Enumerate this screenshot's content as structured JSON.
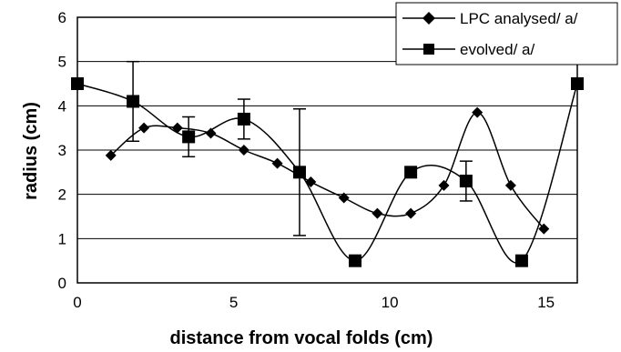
{
  "chart_data": {
    "type": "scatter",
    "xlabel": "distance from vocal folds (cm)",
    "ylabel": "radius (cm)",
    "xlim": [
      0,
      16
    ],
    "ylim": [
      0,
      6
    ],
    "x_ticks": [
      0,
      5,
      10,
      15
    ],
    "y_ticks": [
      0,
      1,
      2,
      3,
      4,
      5,
      6
    ],
    "grid": "horizontal",
    "legend_position": "top-right",
    "series": [
      {
        "name": "LPC analysed/ a/",
        "marker": "diamond",
        "color": "#000000",
        "smoothed": true,
        "x": [
          1.07,
          2.13,
          3.2,
          4.27,
          5.33,
          6.4,
          7.47,
          8.53,
          9.6,
          10.67,
          11.73,
          12.8,
          13.87,
          14.93
        ],
        "y": [
          2.88,
          3.5,
          3.5,
          3.38,
          3.0,
          2.7,
          2.28,
          1.92,
          1.57,
          1.57,
          2.2,
          3.85,
          2.2,
          1.22
        ]
      },
      {
        "name": "evolved/ a/",
        "marker": "square",
        "color": "#000000",
        "smoothed": true,
        "x": [
          0,
          1.78,
          3.56,
          5.33,
          7.11,
          8.89,
          10.67,
          12.44,
          14.22,
          16
        ],
        "y": [
          4.5,
          4.1,
          3.3,
          3.7,
          2.5,
          0.5,
          2.5,
          2.3,
          0.5,
          4.5
        ],
        "error_bars": [
          {
            "x": 1.78,
            "low": 3.2,
            "high": 5.0
          },
          {
            "x": 3.56,
            "low": 2.85,
            "high": 3.75
          },
          {
            "x": 5.33,
            "low": 3.25,
            "high": 4.15
          },
          {
            "x": 7.11,
            "low": 1.07,
            "high": 3.93
          },
          {
            "x": 12.44,
            "low": 1.85,
            "high": 2.75
          }
        ]
      }
    ]
  }
}
